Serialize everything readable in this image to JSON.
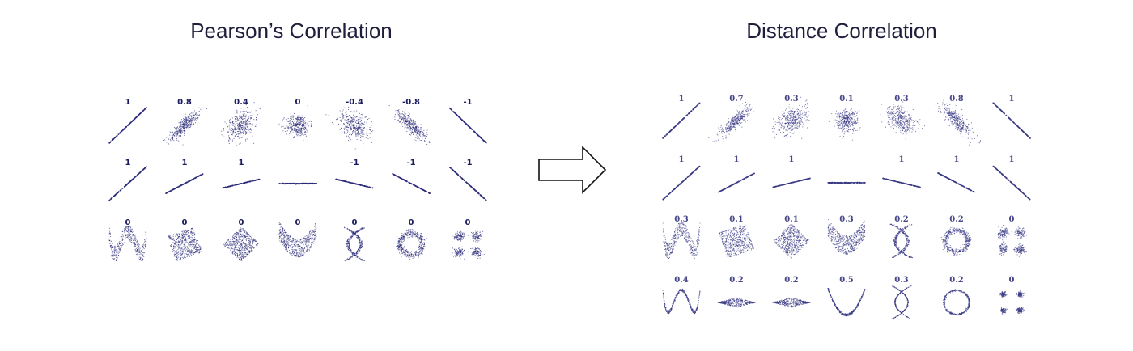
{
  "left_panel": {
    "title": "Pearson’s Correlation",
    "rows": [
      {
        "shapes": [
          "line-pos",
          "scatter-pos-strong",
          "scatter-pos-weak",
          "blob",
          "scatter-neg-weak",
          "scatter-neg-strong",
          "line-neg"
        ],
        "labels": [
          "1",
          "0.8",
          "0.4",
          "0",
          "-0.4",
          "-0.8",
          "-1"
        ]
      },
      {
        "shapes": [
          "line-steep-pos",
          "line-mid-pos",
          "line-flat-pos",
          "line-flat",
          "line-flat-neg",
          "line-mid-neg",
          "line-steep-neg"
        ],
        "labels": [
          "1",
          "1",
          "1",
          "",
          "-1",
          "-1",
          "-1"
        ]
      },
      {
        "shapes": [
          "wave",
          "rotated-square",
          "diamond",
          "parabola-band",
          "x-shape",
          "ring",
          "four-clusters"
        ],
        "labels": [
          "0",
          "0",
          "0",
          "0",
          "0",
          "0",
          "0"
        ]
      }
    ]
  },
  "right_panel": {
    "title": "Distance Correlation",
    "rows": [
      {
        "shapes": [
          "line-pos",
          "scatter-pos-strong",
          "scatter-pos-weak",
          "blob",
          "scatter-neg-weak",
          "scatter-neg-strong",
          "line-neg"
        ],
        "labels": [
          "1",
          "0.7",
          "0.3",
          "0.1",
          "0.3",
          "0.8",
          "1"
        ]
      },
      {
        "shapes": [
          "line-steep-pos",
          "line-mid-pos",
          "line-flat-pos",
          "line-flat",
          "line-flat-neg",
          "line-mid-neg",
          "line-steep-neg"
        ],
        "labels": [
          "1",
          "1",
          "1",
          "",
          "1",
          "1",
          "1"
        ]
      },
      {
        "shapes": [
          "wave",
          "rotated-square",
          "diamond",
          "parabola-band",
          "x-shape",
          "ring",
          "four-clusters"
        ],
        "labels": [
          "0.3",
          "0.1",
          "0.1",
          "0.3",
          "0.2",
          "0.2",
          "0"
        ]
      },
      {
        "shapes": [
          "wave-thin",
          "lens",
          "lens",
          "parabola-thin",
          "x-thin",
          "ring-thin",
          "four-clusters-tight"
        ],
        "labels": [
          "0.4",
          "0.2",
          "0.2",
          "0.5",
          "0.3",
          "0.2",
          "0"
        ]
      }
    ]
  },
  "arrow_icon": "right-arrow-outline",
  "colors": {
    "points_left": "#2b2b7a",
    "points_right": "#3a3a85",
    "title": "#1f1f3d",
    "arrow_stroke": "#111111"
  }
}
